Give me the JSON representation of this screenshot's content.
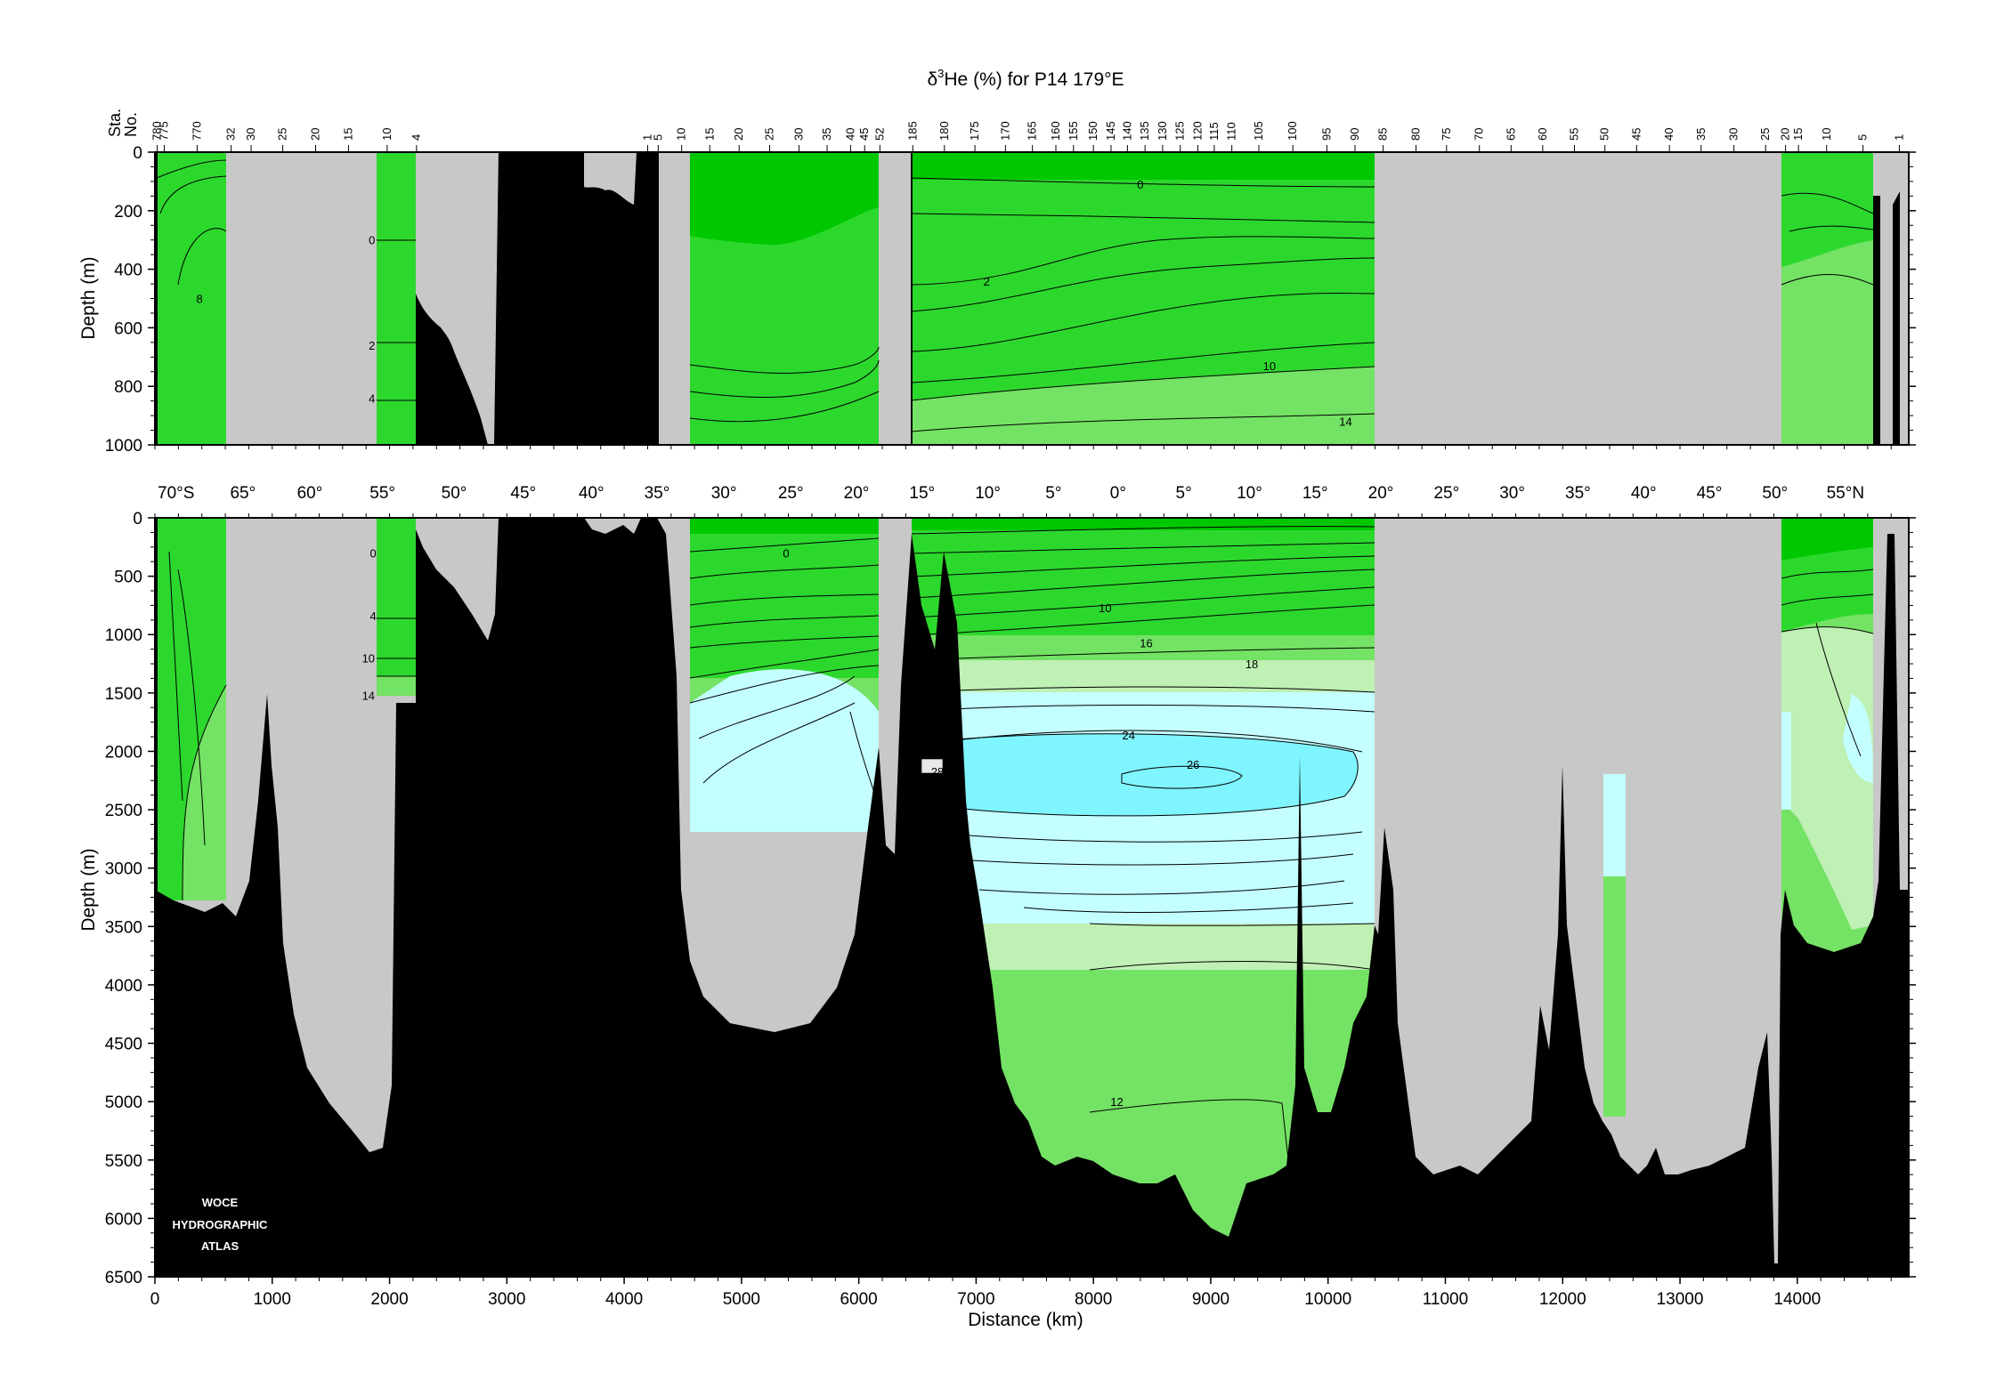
{
  "chart_data": {
    "type": "heatmap",
    "title": "δ³He (%) for P14 179°E",
    "title_parts": {
      "delta": "δ",
      "sup": "3",
      "rest": "He (%) for P14 179°E"
    },
    "xlabel": "Distance (km)",
    "xlim": [
      0,
      14950
    ],
    "x_ticks": [
      "0",
      "1000",
      "2000",
      "3000",
      "4000",
      "5000",
      "6000",
      "7000",
      "8000",
      "9000",
      "10000",
      "11000",
      "12000",
      "13000",
      "14000"
    ],
    "station_axis_label": [
      "Sta.",
      "No."
    ],
    "stations": [
      {
        "label": "780",
        "km": 20
      },
      {
        "label": "775",
        "km": 80
      },
      {
        "label": "770",
        "km": 360
      },
      {
        "label": "32",
        "km": 650
      },
      {
        "label": "30",
        "km": 820
      },
      {
        "label": "25",
        "km": 1090
      },
      {
        "label": "20",
        "km": 1370
      },
      {
        "label": "15",
        "km": 1650
      },
      {
        "label": "10",
        "km": 1980
      },
      {
        "label": "4",
        "km": 2230
      },
      {
        "label": "1",
        "km": 4200
      },
      {
        "label": "5",
        "km": 4290
      },
      {
        "label": "10",
        "km": 4490
      },
      {
        "label": "15",
        "km": 4730
      },
      {
        "label": "20",
        "km": 4980
      },
      {
        "label": "25",
        "km": 5240
      },
      {
        "label": "30",
        "km": 5490
      },
      {
        "label": "35",
        "km": 5730
      },
      {
        "label": "40",
        "km": 5930
      },
      {
        "label": "45",
        "km": 6050
      },
      {
        "label": "52",
        "km": 6180
      },
      {
        "label": "185",
        "km": 6460
      },
      {
        "label": "180",
        "km": 6730
      },
      {
        "label": "175",
        "km": 6990
      },
      {
        "label": "170",
        "km": 7250
      },
      {
        "label": "165",
        "km": 7480
      },
      {
        "label": "160",
        "km": 7680
      },
      {
        "label": "155",
        "km": 7830
      },
      {
        "label": "150",
        "km": 8000
      },
      {
        "label": "145",
        "km": 8150
      },
      {
        "label": "140",
        "km": 8290
      },
      {
        "label": "135",
        "km": 8440
      },
      {
        "label": "130",
        "km": 8590
      },
      {
        "label": "125",
        "km": 8740
      },
      {
        "label": "120",
        "km": 8890
      },
      {
        "label": "115",
        "km": 9030
      },
      {
        "label": "110",
        "km": 9180
      },
      {
        "label": "105",
        "km": 9410
      },
      {
        "label": "100",
        "km": 9700
      },
      {
        "label": "95",
        "km": 9990
      },
      {
        "label": "90",
        "km": 10230
      },
      {
        "label": "85",
        "km": 10470
      },
      {
        "label": "80",
        "km": 10750
      },
      {
        "label": "75",
        "km": 11010
      },
      {
        "label": "70",
        "km": 11290
      },
      {
        "label": "65",
        "km": 11560
      },
      {
        "label": "60",
        "km": 11830
      },
      {
        "label": "55",
        "km": 12100
      },
      {
        "label": "50",
        "km": 12360
      },
      {
        "label": "45",
        "km": 12630
      },
      {
        "label": "40",
        "km": 12910
      },
      {
        "label": "35",
        "km": 13180
      },
      {
        "label": "30",
        "km": 13460
      },
      {
        "label": "25",
        "km": 13730
      },
      {
        "label": "20",
        "km": 13900
      },
      {
        "label": "15",
        "km": 14010
      },
      {
        "label": "10",
        "km": 14250
      },
      {
        "label": "5",
        "km": 14560
      },
      {
        "label": "1",
        "km": 14870
      }
    ],
    "latitude_labels": [
      {
        "label": "70°S",
        "km": 180
      },
      {
        "label": "65°",
        "km": 750
      },
      {
        "label": "60°",
        "km": 1320
      },
      {
        "label": "55°",
        "km": 1940
      },
      {
        "label": "50°",
        "km": 2550
      },
      {
        "label": "45°",
        "km": 3140
      },
      {
        "label": "40°",
        "km": 3720
      },
      {
        "label": "35°",
        "km": 4280
      },
      {
        "label": "30°",
        "km": 4850
      },
      {
        "label": "25°",
        "km": 5420
      },
      {
        "label": "20°",
        "km": 5980
      },
      {
        "label": "15°",
        "km": 6540
      },
      {
        "label": "10°",
        "km": 7100
      },
      {
        "label": "5°",
        "km": 7660
      },
      {
        "label": "0°",
        "km": 8210
      },
      {
        "label": "5°",
        "km": 8770
      },
      {
        "label": "10°",
        "km": 9330
      },
      {
        "label": "15°",
        "km": 9890
      },
      {
        "label": "20°",
        "km": 10450
      },
      {
        "label": "25°",
        "km": 11010
      },
      {
        "label": "30°",
        "km": 11570
      },
      {
        "label": "35°",
        "km": 12130
      },
      {
        "label": "40°",
        "km": 12690
      },
      {
        "label": "45°",
        "km": 13250
      },
      {
        "label": "50°",
        "km": 13810
      },
      {
        "label": "55°N",
        "km": 14410
      }
    ],
    "panels": [
      {
        "name": "upper",
        "ylabel": "Depth (m)",
        "ylim": [
          0,
          1000
        ],
        "y_ticks": [
          "0",
          "200",
          "400",
          "600",
          "800",
          "1000"
        ],
        "y_tick_values": [
          0,
          200,
          400,
          600,
          800,
          1000
        ],
        "contour_labels": [
          {
            "text": "0",
            "km": 8400,
            "depth": 110
          },
          {
            "text": "2",
            "km": 7090,
            "depth": 440
          },
          {
            "text": "10",
            "km": 9500,
            "depth": 730
          },
          {
            "text": "14",
            "km": 10150,
            "depth": 920
          },
          {
            "text": "8",
            "km": 380,
            "depth": 500
          },
          {
            "text": "0",
            "km": 1850,
            "depth": 300
          },
          {
            "text": "2",
            "km": 1850,
            "depth": 660
          },
          {
            "text": "4",
            "km": 1850,
            "depth": 840
          }
        ]
      },
      {
        "name": "lower",
        "ylabel": "Depth (m)",
        "ylim": [
          0,
          6500
        ],
        "y_ticks": [
          "0",
          "500",
          "1000",
          "1500",
          "2000",
          "2500",
          "3000",
          "3500",
          "4000",
          "4500",
          "5000",
          "5500",
          "6000",
          "6500"
        ],
        "y_tick_values": [
          0,
          500,
          1000,
          1500,
          2000,
          2500,
          3000,
          3500,
          4000,
          4500,
          5000,
          5500,
          6000,
          6500
        ],
        "contour_labels": [
          {
            "text": "0",
            "km": 5380,
            "depth": 300
          },
          {
            "text": "10",
            "km": 8100,
            "depth": 770
          },
          {
            "text": "16",
            "km": 8450,
            "depth": 1070
          },
          {
            "text": "18",
            "km": 9350,
            "depth": 1250
          },
          {
            "text": "24",
            "km": 8300,
            "depth": 1860
          },
          {
            "text": "26",
            "km": 8850,
            "depth": 2110
          },
          {
            "text": "28",
            "km": 6670,
            "depth": 2170
          },
          {
            "text": "12",
            "km": 8200,
            "depth": 5000
          },
          {
            "text": "0",
            "km": 1860,
            "depth": 300
          },
          {
            "text": "4",
            "km": 1860,
            "depth": 840
          },
          {
            "text": "10",
            "km": 1820,
            "depth": 1200
          },
          {
            "text": "14",
            "km": 1820,
            "depth": 1520
          }
        ]
      }
    ],
    "contour_levels": [
      0,
      2,
      4,
      6,
      8,
      10,
      12,
      14,
      16,
      18,
      20,
      22,
      24,
      26,
      28
    ],
    "color_bands": [
      {
        "range": "< 0",
        "color": "#00c800"
      },
      {
        "range": "0–10",
        "color": "#2dd82d"
      },
      {
        "range": "10–14",
        "color": "#74e264"
      },
      {
        "range": "14–18",
        "color": "#bff0b4"
      },
      {
        "range": "18–26",
        "color": "#c4ffff"
      },
      {
        "range": "> 26",
        "color": "#7ff5ff"
      }
    ],
    "colors": {
      "no_data": "#c8c8c8",
      "bathymetry": "#000000",
      "band_le0": "#00c800",
      "band_0_10": "#2dd82d",
      "band_10_14": "#74e264",
      "band_14_18": "#bff0b4",
      "band_18_26": "#c4ffff",
      "band_gt26": "#7ff5ff"
    }
  },
  "watermark": [
    "WOCE",
    "HYDROGRAPHIC",
    "ATLAS"
  ]
}
